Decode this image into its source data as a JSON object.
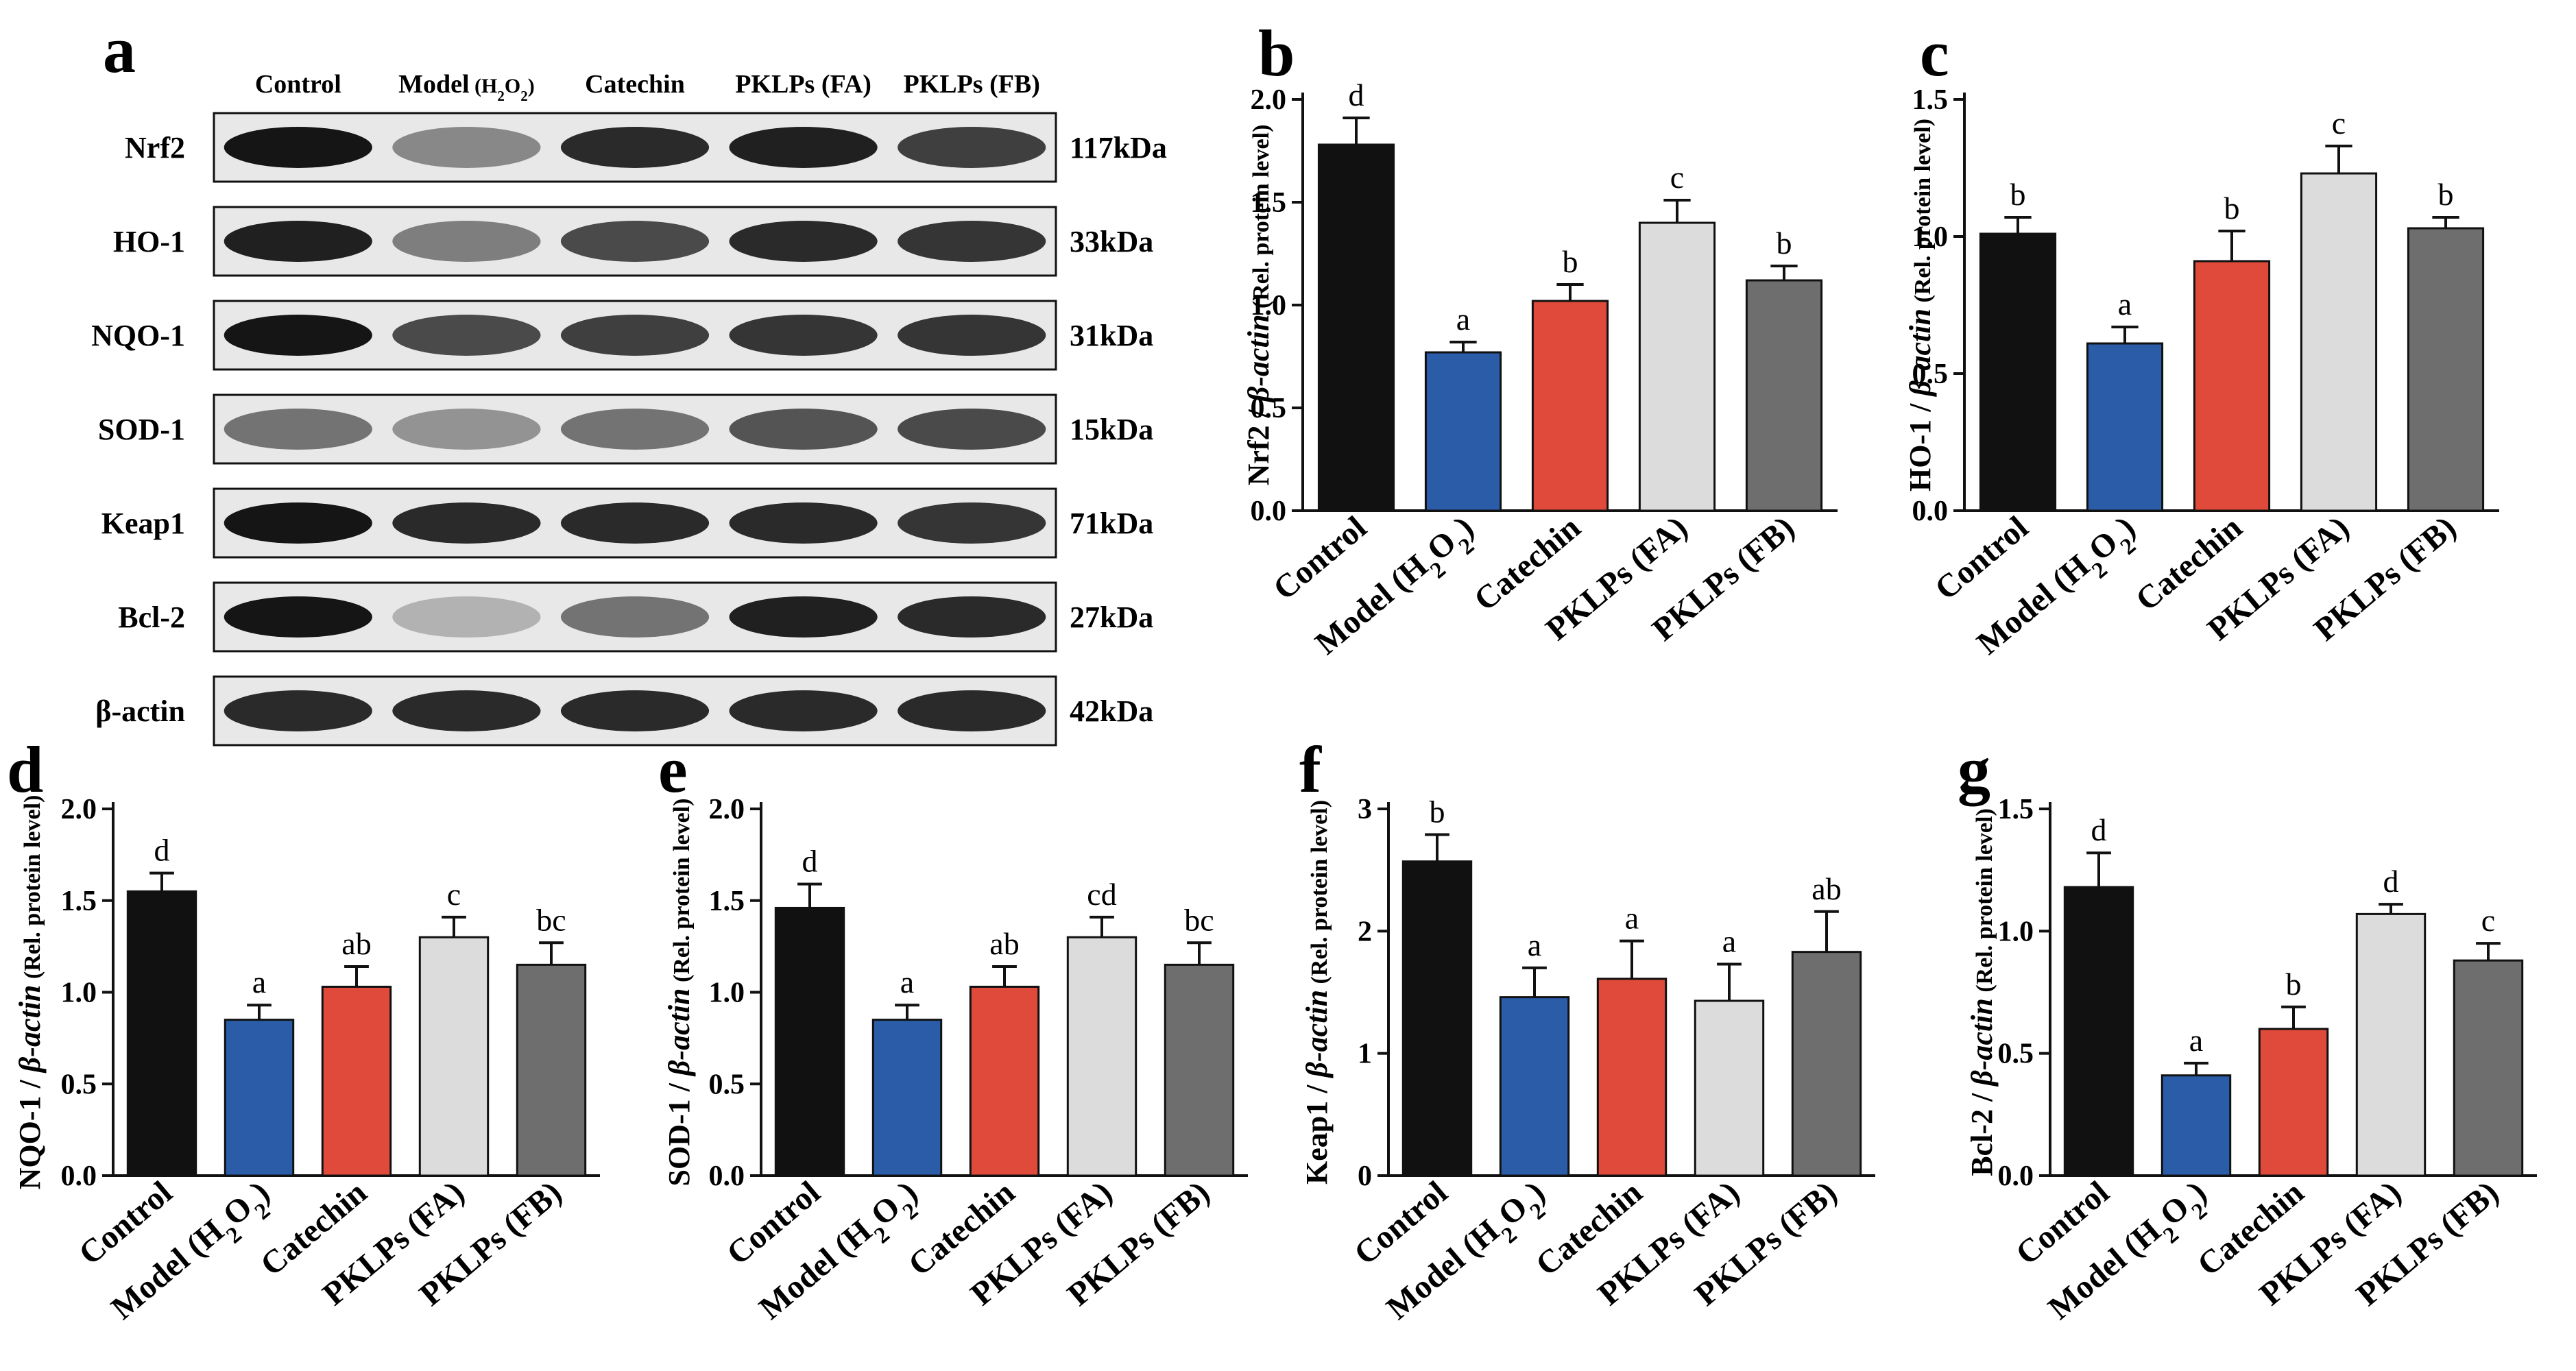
{
  "panel_a": {
    "letter": "a",
    "columns": [
      "Control",
      "Model",
      "Catechin",
      "PKLPs (FA)",
      "PKLPs (FB)"
    ],
    "model_suffix": "(H2O2)",
    "rows": [
      {
        "protein": "Nrf2",
        "size": "117kDa",
        "intensity": [
          1.0,
          0.45,
          0.9,
          0.95,
          0.8
        ]
      },
      {
        "protein": "HO-1",
        "size": "33kDa",
        "intensity": [
          0.95,
          0.5,
          0.75,
          0.9,
          0.85
        ]
      },
      {
        "protein": "NQO-1",
        "size": "31kDa",
        "intensity": [
          1.0,
          0.75,
          0.8,
          0.85,
          0.85
        ]
      },
      {
        "protein": "SOD-1",
        "size": "15kDa",
        "intensity": [
          0.55,
          0.4,
          0.55,
          0.7,
          0.75
        ]
      },
      {
        "protein": "Keap1",
        "size": "71kDa",
        "intensity": [
          1.0,
          0.9,
          0.9,
          0.9,
          0.85
        ]
      },
      {
        "protein": "Bcl-2",
        "size": "27kDa",
        "intensity": [
          1.0,
          0.25,
          0.55,
          0.95,
          0.9
        ]
      },
      {
        "protein": "β-actin",
        "size": "42kDa",
        "intensity": [
          0.9,
          0.9,
          0.9,
          0.9,
          0.9
        ]
      }
    ]
  },
  "colors": [
    "#111111",
    "#2b5ca8",
    "#e04a3a",
    "#dcdcdc",
    "#6e6e6e"
  ],
  "chart_data": [
    {
      "type": "bar",
      "letter": "b",
      "ylabel": "Nrf2 / β-actin",
      "ylabel_unit": "(Rel. protein level)",
      "categories": [
        "Control",
        "Model (H2O2)",
        "Catechin",
        "PKLPs (FA)",
        "PKLPs (FB)"
      ],
      "values": [
        1.78,
        0.77,
        1.02,
        1.4,
        1.12
      ],
      "errors": [
        0.13,
        0.05,
        0.08,
        0.11,
        0.07
      ],
      "letters": [
        "d",
        "a",
        "b",
        "c",
        "b"
      ],
      "ylim": [
        0,
        2.0
      ],
      "ticks": [
        "0.0",
        "0.5",
        "1.0",
        "1.5",
        "2.0"
      ]
    },
    {
      "type": "bar",
      "letter": "c",
      "ylabel": "HO-1 / β-actin",
      "ylabel_unit": "(Rel. protein level)",
      "categories": [
        "Control",
        "Model (H2O2)",
        "Catechin",
        "PKLPs (FA)",
        "PKLPs (FB)"
      ],
      "values": [
        1.01,
        0.61,
        0.91,
        1.23,
        1.03
      ],
      "errors": [
        0.06,
        0.06,
        0.11,
        0.1,
        0.04
      ],
      "letters": [
        "b",
        "a",
        "b",
        "c",
        "b"
      ],
      "ylim": [
        0,
        1.5
      ],
      "ticks": [
        "0.0",
        "0.5",
        "1.0",
        "1.5"
      ]
    },
    {
      "type": "bar",
      "letter": "d",
      "ylabel": "NQO-1 / β-actin",
      "ylabel_unit": "(Rel. protein level)",
      "categories": [
        "Control",
        "Model (H2O2)",
        "Catechin",
        "PKLPs (FA)",
        "PKLPs (FB)"
      ],
      "values": [
        1.55,
        0.85,
        1.03,
        1.3,
        1.15
      ],
      "errors": [
        0.1,
        0.08,
        0.11,
        0.11,
        0.12
      ],
      "letters": [
        "d",
        "a",
        "ab",
        "c",
        "bc"
      ],
      "ylim": [
        0,
        2.0
      ],
      "ticks": [
        "0.0",
        "0.5",
        "1.0",
        "1.5",
        "2.0"
      ]
    },
    {
      "type": "bar",
      "letter": "e",
      "ylabel": "SOD-1 / β-actin",
      "ylabel_unit": "(Rel. protein level)",
      "categories": [
        "Control",
        "Model (H2O2)",
        "Catechin",
        "PKLPs (FA)",
        "PKLPs (FB)"
      ],
      "values": [
        1.46,
        0.85,
        1.03,
        1.3,
        1.15
      ],
      "errors": [
        0.13,
        0.08,
        0.11,
        0.11,
        0.12
      ],
      "letters": [
        "d",
        "a",
        "ab",
        "cd",
        "bc"
      ],
      "ylim": [
        0,
        2.0
      ],
      "ticks": [
        "0.0",
        "0.5",
        "1.0",
        "1.5",
        "2.0"
      ]
    },
    {
      "type": "bar",
      "letter": "f",
      "ylabel": "Keap1 / β-actin",
      "ylabel_unit": "(Rel. protein level)",
      "categories": [
        "Control",
        "Model (H2O2)",
        "Catechin",
        "PKLPs (FA)",
        "PKLPs (FB)"
      ],
      "values": [
        2.57,
        1.46,
        1.61,
        1.43,
        1.83
      ],
      "errors": [
        0.22,
        0.24,
        0.31,
        0.3,
        0.33
      ],
      "letters": [
        "b",
        "a",
        "a",
        "a",
        "ab"
      ],
      "ylim": [
        0,
        3
      ],
      "ticks": [
        "0",
        "1",
        "2",
        "3"
      ]
    },
    {
      "type": "bar",
      "letter": "g",
      "ylabel": "Bcl-2 / β-actin",
      "ylabel_unit": "(Rel. protein level)",
      "categories": [
        "Control",
        "Model (H2O2)",
        "Catechin",
        "PKLPs (FA)",
        "PKLPs (FB)"
      ],
      "values": [
        1.18,
        0.41,
        0.6,
        1.07,
        0.88
      ],
      "errors": [
        0.14,
        0.05,
        0.09,
        0.04,
        0.07
      ],
      "letters": [
        "d",
        "a",
        "b",
        "d",
        "c"
      ],
      "ylim": [
        0,
        1.5
      ],
      "ticks": [
        "0.0",
        "0.5",
        "1.0",
        "1.5"
      ]
    }
  ]
}
